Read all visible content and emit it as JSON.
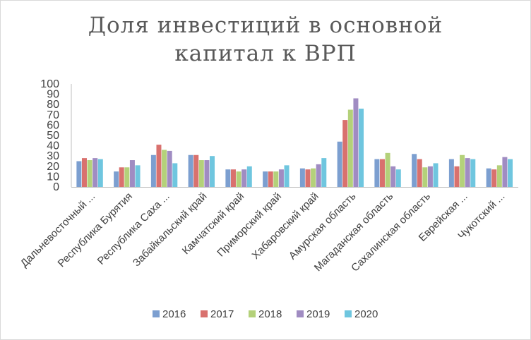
{
  "chart_data": {
    "type": "bar",
    "title_lines": [
      "Доля инвестиций в основной",
      "капитал к ВРП"
    ],
    "categories": [
      "Дальневосточный ...",
      "Республика Бурятия",
      "Республика Саха ...",
      "Забайкальский край",
      "Камчатский край",
      "Приморский край",
      "Хабаровский край",
      "Амурская область",
      "Магаданская область",
      "Сахалинская область",
      "Еврейская ...",
      "Чукотский ..."
    ],
    "series": [
      {
        "name": "2016",
        "color": "#7c9fd0",
        "values": [
          25,
          15,
          31,
          31,
          17,
          15,
          18,
          44,
          27,
          32,
          27,
          18
        ]
      },
      {
        "name": "2017",
        "color": "#d9716e",
        "values": [
          28,
          19,
          41,
          31,
          17,
          15,
          17,
          65,
          27,
          27,
          20,
          17
        ]
      },
      {
        "name": "2018",
        "color": "#b4d17a",
        "values": [
          26,
          19,
          36,
          26,
          15,
          15,
          18,
          75,
          33,
          19,
          31,
          21
        ]
      },
      {
        "name": "2019",
        "color": "#a08cc2",
        "values": [
          28,
          26,
          35,
          26,
          17,
          17,
          22,
          86,
          20,
          20,
          28,
          29
        ]
      },
      {
        "name": "2020",
        "color": "#6fc6df",
        "values": [
          27,
          21,
          23,
          30,
          20,
          21,
          28,
          76,
          17,
          23,
          27,
          27
        ]
      }
    ],
    "ylim": [
      0,
      100
    ],
    "yticks": [
      0,
      10,
      20,
      30,
      40,
      50,
      60,
      70,
      80,
      90,
      100
    ],
    "grid": false,
    "legend_position": "bottom"
  }
}
